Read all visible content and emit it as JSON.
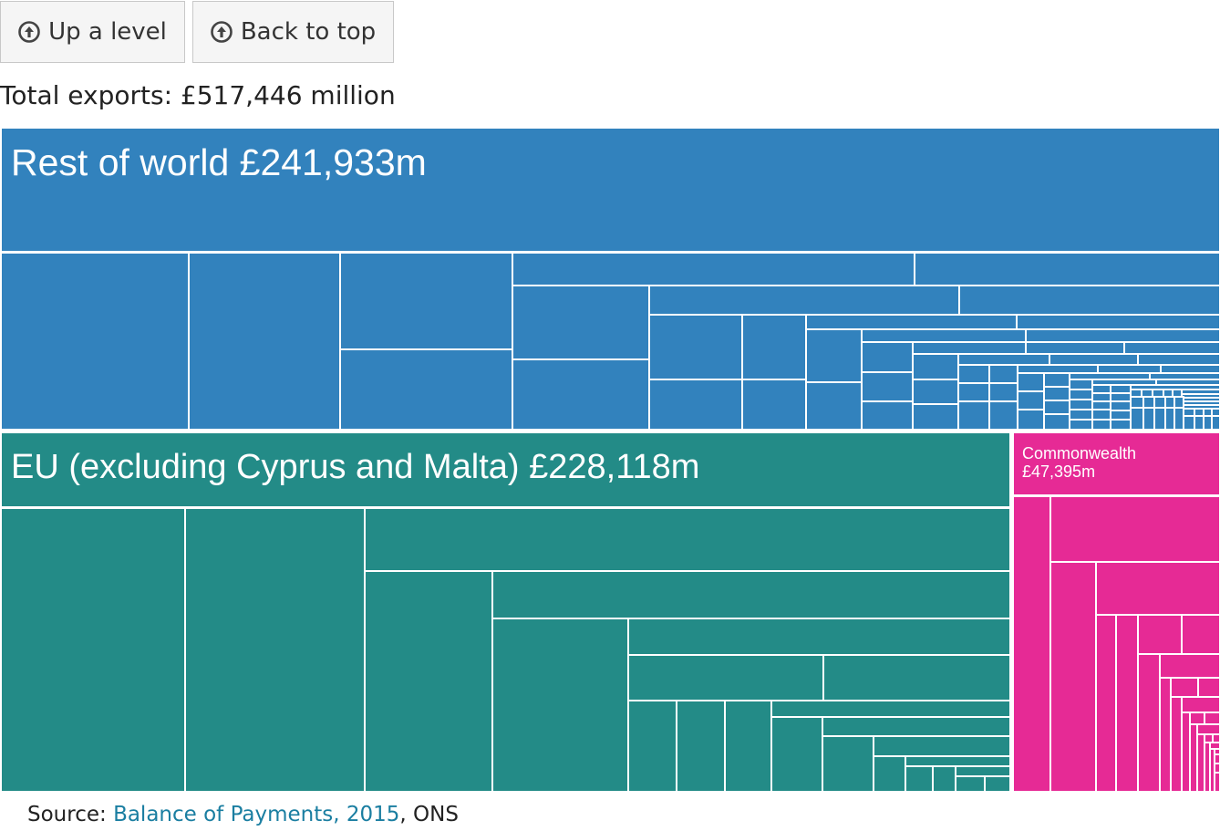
{
  "nav": {
    "up_label": "Up a level",
    "top_label": "Back to top",
    "up_icon": "circle-up-arrow-icon",
    "top_icon": "circle-up-arrow-icon"
  },
  "total_label": "Total exports: £517,446 million",
  "source": {
    "prefix": "Source: ",
    "link_text": "Balance of Payments, 2015",
    "suffix": ", ONS"
  },
  "colors": {
    "rest_of_world": "#3282bd",
    "eu": "#238b87",
    "commonwealth": "#e62a95"
  },
  "chart_data": {
    "type": "treemap",
    "total": 517446,
    "unit": "£ million",
    "groups": [
      {
        "name": "Rest of world",
        "label": "Rest of world £241,933m",
        "value": 241933,
        "color_key": "rest_of_world"
      },
      {
        "name": "EU (excluding Cyprus and Malta)",
        "label": "EU (excluding Cyprus and Malta) £228,118m",
        "value": 228118,
        "color_key": "eu"
      },
      {
        "name": "Commonwealth",
        "label_lines": [
          "Commonwealth",
          "£47,395m"
        ],
        "value": 47395,
        "color_key": "commonwealth"
      }
    ]
  }
}
